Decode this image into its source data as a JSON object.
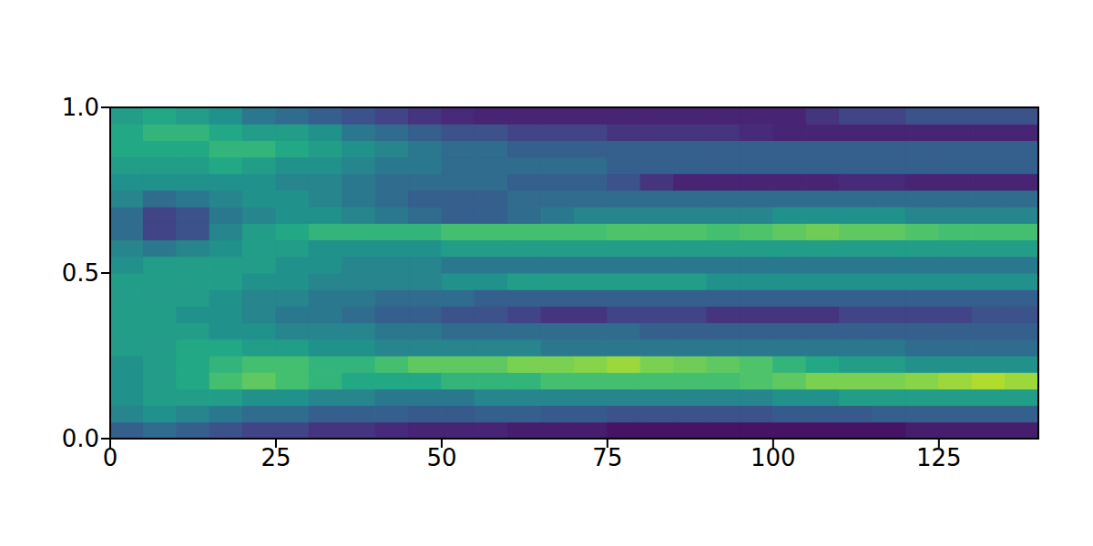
{
  "chart_data": {
    "type": "heatmap",
    "xlim": [
      0,
      140
    ],
    "ylim": [
      0,
      1
    ],
    "xticks": [
      0,
      25,
      50,
      75,
      100,
      125
    ],
    "yticks": [
      {
        "value": 0,
        "label": "0.0"
      },
      {
        "value": 0.5,
        "label": "0.5"
      },
      {
        "value": 1,
        "label": "1.0"
      }
    ],
    "x_edges": [
      0,
      5,
      10,
      15,
      20,
      25,
      30,
      35,
      40,
      45,
      50,
      55,
      60,
      65,
      70,
      75,
      80,
      85,
      90,
      95,
      100,
      105,
      110,
      115,
      120,
      125,
      130,
      135,
      140
    ],
    "y_edges": [
      0,
      0.05,
      0.1,
      0.15,
      0.2,
      0.25,
      0.3,
      0.35,
      0.4,
      0.45,
      0.5,
      0.55,
      0.6,
      0.65,
      0.7,
      0.75,
      0.8,
      0.85,
      0.9,
      0.95,
      1
    ],
    "color_range": [
      0,
      1
    ],
    "cells": [
      [
        0.3,
        0.35,
        0.3,
        0.25,
        0.2,
        0.2,
        0.15,
        0.15,
        0.12,
        0.1,
        0.1,
        0.1,
        0.08,
        0.08,
        0.08,
        0.05,
        0.05,
        0.05,
        0.05,
        0.05,
        0.05,
        0.05,
        0.05,
        0.05,
        0.08,
        0.08,
        0.08,
        0.08
      ],
      [
        0.45,
        0.5,
        0.45,
        0.4,
        0.35,
        0.35,
        0.3,
        0.3,
        0.3,
        0.28,
        0.28,
        0.3,
        0.3,
        0.28,
        0.28,
        0.25,
        0.25,
        0.25,
        0.25,
        0.25,
        0.28,
        0.28,
        0.28,
        0.3,
        0.3,
        0.3,
        0.3,
        0.3
      ],
      [
        0.5,
        0.55,
        0.55,
        0.55,
        0.5,
        0.5,
        0.45,
        0.45,
        0.4,
        0.4,
        0.4,
        0.45,
        0.45,
        0.45,
        0.45,
        0.45,
        0.45,
        0.45,
        0.45,
        0.45,
        0.5,
        0.5,
        0.55,
        0.55,
        0.55,
        0.55,
        0.55,
        0.55
      ],
      [
        0.5,
        0.55,
        0.6,
        0.7,
        0.75,
        0.7,
        0.65,
        0.6,
        0.6,
        0.6,
        0.65,
        0.65,
        0.65,
        0.7,
        0.7,
        0.7,
        0.7,
        0.7,
        0.7,
        0.72,
        0.75,
        0.8,
        0.8,
        0.8,
        0.82,
        0.85,
        0.88,
        0.85
      ],
      [
        0.5,
        0.55,
        0.6,
        0.65,
        0.7,
        0.7,
        0.65,
        0.65,
        0.7,
        0.75,
        0.75,
        0.75,
        0.8,
        0.8,
        0.82,
        0.85,
        0.8,
        0.78,
        0.75,
        0.72,
        0.65,
        0.6,
        0.55,
        0.55,
        0.5,
        0.5,
        0.5,
        0.5
      ],
      [
        0.55,
        0.55,
        0.6,
        0.6,
        0.55,
        0.55,
        0.5,
        0.5,
        0.45,
        0.45,
        0.45,
        0.45,
        0.45,
        0.4,
        0.4,
        0.4,
        0.4,
        0.4,
        0.4,
        0.4,
        0.4,
        0.4,
        0.4,
        0.4,
        0.35,
        0.35,
        0.35,
        0.35
      ],
      [
        0.55,
        0.55,
        0.55,
        0.5,
        0.5,
        0.45,
        0.45,
        0.45,
        0.4,
        0.4,
        0.35,
        0.35,
        0.35,
        0.35,
        0.35,
        0.35,
        0.3,
        0.3,
        0.3,
        0.3,
        0.3,
        0.3,
        0.3,
        0.3,
        0.3,
        0.3,
        0.3,
        0.3
      ],
      [
        0.55,
        0.55,
        0.5,
        0.5,
        0.45,
        0.4,
        0.4,
        0.35,
        0.3,
        0.3,
        0.25,
        0.25,
        0.2,
        0.15,
        0.15,
        0.2,
        0.2,
        0.2,
        0.15,
        0.15,
        0.15,
        0.15,
        0.2,
        0.2,
        0.2,
        0.2,
        0.25,
        0.25
      ],
      [
        0.55,
        0.55,
        0.55,
        0.5,
        0.45,
        0.45,
        0.4,
        0.4,
        0.35,
        0.35,
        0.35,
        0.3,
        0.3,
        0.3,
        0.3,
        0.3,
        0.3,
        0.3,
        0.3,
        0.3,
        0.3,
        0.3,
        0.3,
        0.3,
        0.3,
        0.3,
        0.3,
        0.3
      ],
      [
        0.55,
        0.55,
        0.55,
        0.55,
        0.5,
        0.5,
        0.45,
        0.45,
        0.45,
        0.45,
        0.5,
        0.5,
        0.55,
        0.55,
        0.55,
        0.55,
        0.55,
        0.55,
        0.5,
        0.5,
        0.5,
        0.5,
        0.5,
        0.5,
        0.5,
        0.5,
        0.5,
        0.5
      ],
      [
        0.5,
        0.55,
        0.55,
        0.55,
        0.55,
        0.5,
        0.5,
        0.45,
        0.45,
        0.45,
        0.4,
        0.4,
        0.4,
        0.4,
        0.4,
        0.4,
        0.4,
        0.4,
        0.4,
        0.4,
        0.4,
        0.4,
        0.4,
        0.4,
        0.4,
        0.4,
        0.4,
        0.4
      ],
      [
        0.45,
        0.4,
        0.45,
        0.5,
        0.55,
        0.55,
        0.5,
        0.5,
        0.5,
        0.5,
        0.55,
        0.55,
        0.55,
        0.55,
        0.55,
        0.55,
        0.55,
        0.55,
        0.55,
        0.55,
        0.55,
        0.55,
        0.55,
        0.55,
        0.55,
        0.55,
        0.55,
        0.55
      ],
      [
        0.35,
        0.2,
        0.25,
        0.45,
        0.55,
        0.6,
        0.65,
        0.65,
        0.65,
        0.65,
        0.7,
        0.7,
        0.7,
        0.7,
        0.7,
        0.72,
        0.72,
        0.72,
        0.7,
        0.72,
        0.75,
        0.78,
        0.75,
        0.75,
        0.72,
        0.7,
        0.7,
        0.7
      ],
      [
        0.35,
        0.2,
        0.25,
        0.4,
        0.45,
        0.5,
        0.5,
        0.45,
        0.4,
        0.35,
        0.3,
        0.3,
        0.35,
        0.4,
        0.45,
        0.45,
        0.45,
        0.45,
        0.45,
        0.45,
        0.5,
        0.5,
        0.5,
        0.5,
        0.45,
        0.45,
        0.45,
        0.45
      ],
      [
        0.45,
        0.35,
        0.4,
        0.45,
        0.5,
        0.5,
        0.45,
        0.4,
        0.35,
        0.3,
        0.3,
        0.3,
        0.35,
        0.35,
        0.35,
        0.35,
        0.35,
        0.35,
        0.35,
        0.35,
        0.35,
        0.35,
        0.35,
        0.35,
        0.35,
        0.35,
        0.35,
        0.35
      ],
      [
        0.5,
        0.5,
        0.5,
        0.5,
        0.5,
        0.45,
        0.45,
        0.4,
        0.35,
        0.35,
        0.35,
        0.35,
        0.3,
        0.3,
        0.3,
        0.25,
        0.15,
        0.1,
        0.1,
        0.1,
        0.1,
        0.1,
        0.12,
        0.12,
        0.1,
        0.1,
        0.1,
        0.1
      ],
      [
        0.55,
        0.55,
        0.55,
        0.6,
        0.55,
        0.5,
        0.5,
        0.45,
        0.4,
        0.4,
        0.35,
        0.35,
        0.35,
        0.35,
        0.35,
        0.3,
        0.3,
        0.3,
        0.3,
        0.3,
        0.3,
        0.3,
        0.3,
        0.3,
        0.3,
        0.3,
        0.3,
        0.3
      ],
      [
        0.6,
        0.6,
        0.6,
        0.65,
        0.65,
        0.6,
        0.55,
        0.5,
        0.45,
        0.4,
        0.35,
        0.35,
        0.3,
        0.3,
        0.3,
        0.3,
        0.3,
        0.3,
        0.3,
        0.3,
        0.3,
        0.3,
        0.3,
        0.3,
        0.3,
        0.3,
        0.3,
        0.3
      ],
      [
        0.6,
        0.65,
        0.65,
        0.6,
        0.55,
        0.55,
        0.5,
        0.4,
        0.35,
        0.3,
        0.25,
        0.25,
        0.2,
        0.2,
        0.2,
        0.15,
        0.15,
        0.15,
        0.15,
        0.12,
        0.1,
        0.1,
        0.1,
        0.1,
        0.1,
        0.1,
        0.1,
        0.1
      ],
      [
        0.55,
        0.6,
        0.55,
        0.5,
        0.4,
        0.35,
        0.3,
        0.25,
        0.2,
        0.15,
        0.12,
        0.1,
        0.1,
        0.1,
        0.1,
        0.1,
        0.1,
        0.1,
        0.1,
        0.1,
        0.1,
        0.15,
        0.2,
        0.2,
        0.25,
        0.25,
        0.25,
        0.25
      ]
    ]
  }
}
